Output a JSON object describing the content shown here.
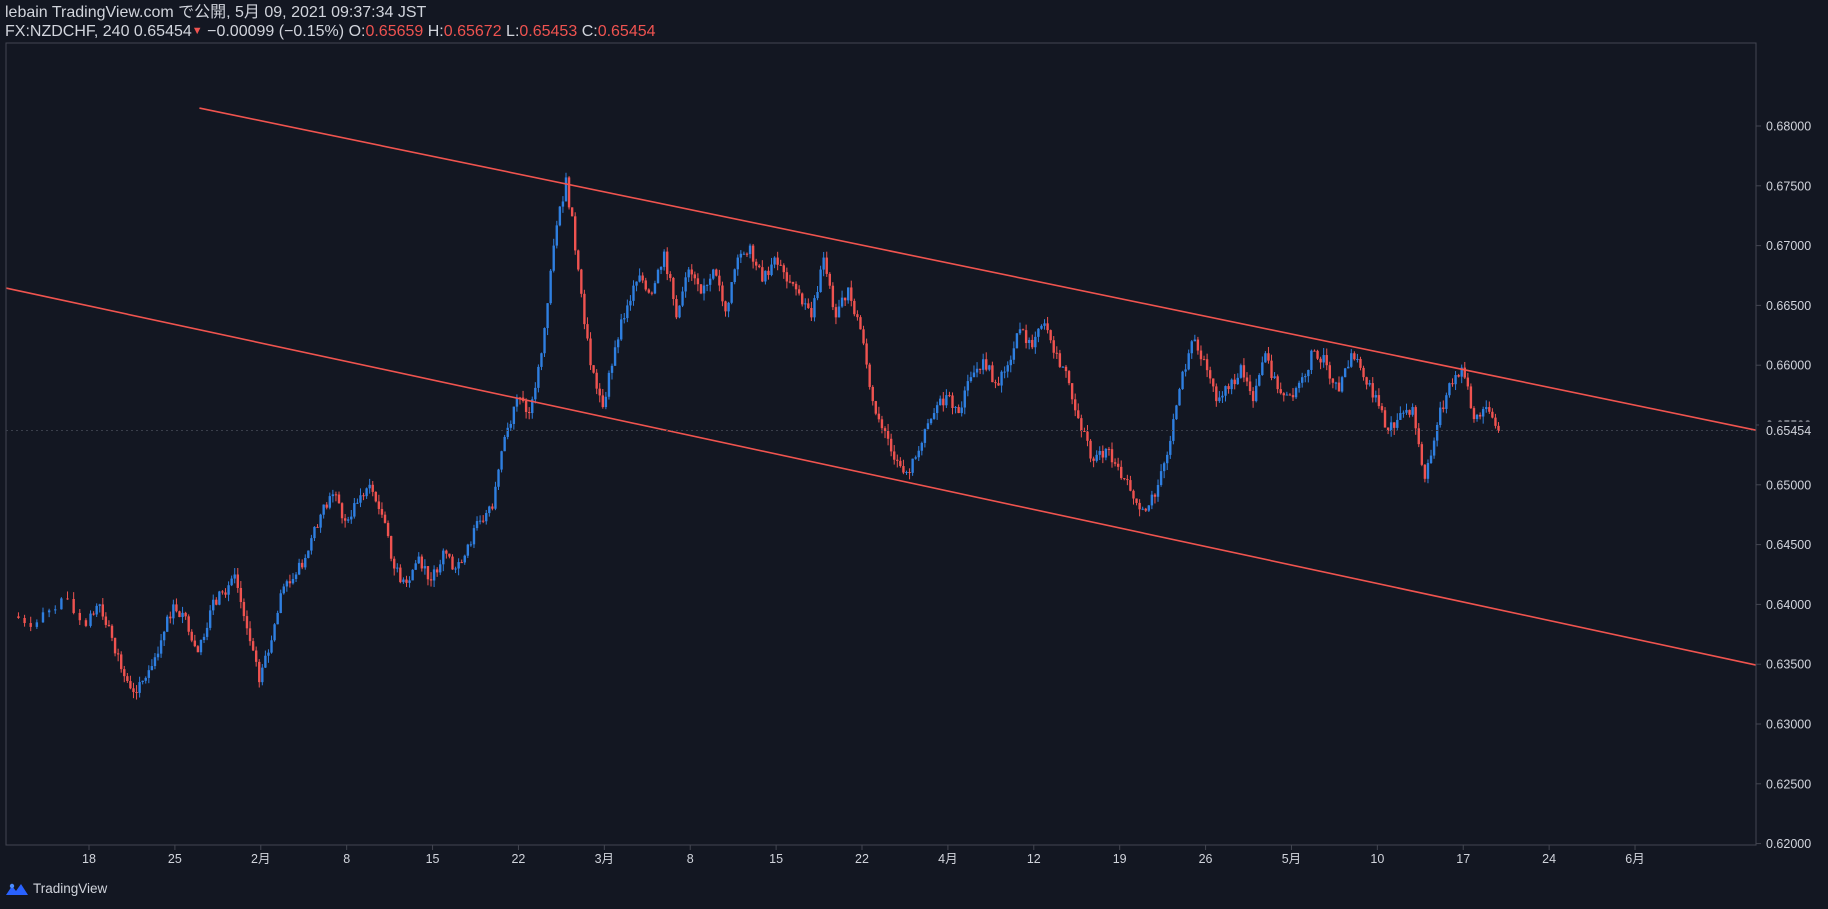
{
  "header": {
    "line1": "lebain TradingView.com で公開, 5月 09, 2021 09:37:34 JST",
    "symbol": "FX:NZDCHF, 240",
    "last": "0.65454",
    "change": "−0.00099 (−0.15%)",
    "o_label": "O:",
    "o_value": "0.65659",
    "h_label": "H:",
    "h_value": "0.65672",
    "l_label": "L:",
    "l_value": "0.65453",
    "c_label": "C:",
    "c_value": "0.65454"
  },
  "footer": {
    "brand": "TradingView",
    "logo_icon": "tradingview-logo-icon"
  },
  "colors": {
    "background": "#131722",
    "up": "#2f7fe0",
    "down": "#ef5350",
    "channel": "#f0544f",
    "axis": "#434651",
    "text": "#d1d4dc"
  },
  "chart_data": {
    "type": "candlestick",
    "symbol": "FX:NZDCHF",
    "interval": "240",
    "y_axis": {
      "side": "right",
      "range": [
        0.615,
        0.6825
      ],
      "ticks": [
        "0.68000",
        "0.67500",
        "0.67000",
        "0.66500",
        "0.66000",
        "0.65500",
        "0.65000",
        "0.64500",
        "0.64000",
        "0.63500",
        "0.63000",
        "0.62500",
        "0.62000"
      ],
      "current_price_label": "0.65454"
    },
    "x_axis": {
      "ticks": [
        "18",
        "25",
        "2月",
        "8",
        "15",
        "22",
        "3月",
        "8",
        "15",
        "22",
        "4月",
        "12",
        "19",
        "26",
        "5月",
        "10",
        "17",
        "24",
        "6月"
      ]
    },
    "price_path": [
      {
        "date": "2021-01-12",
        "close": 0.639
      },
      {
        "date": "2021-01-14",
        "close": 0.6385
      },
      {
        "date": "2021-01-16",
        "close": 0.6405
      },
      {
        "date": "2021-01-18",
        "close": 0.6382
      },
      {
        "date": "2021-01-19",
        "close": 0.64
      },
      {
        "date": "2021-01-20",
        "close": 0.6372
      },
      {
        "date": "2021-01-21",
        "close": 0.634
      },
      {
        "date": "2021-01-22",
        "close": 0.6326
      },
      {
        "date": "2021-01-23",
        "close": 0.6345
      },
      {
        "date": "2021-01-24",
        "close": 0.637
      },
      {
        "date": "2021-01-25",
        "close": 0.64
      },
      {
        "date": "2021-01-26",
        "close": 0.639
      },
      {
        "date": "2021-01-27",
        "close": 0.636
      },
      {
        "date": "2021-01-28",
        "close": 0.6395
      },
      {
        "date": "2021-01-29",
        "close": 0.641
      },
      {
        "date": "2021-01-30",
        "close": 0.6425
      },
      {
        "date": "2021-01-31",
        "close": 0.638
      },
      {
        "date": "2021-02-01",
        "close": 0.6335
      },
      {
        "date": "2021-02-02",
        "close": 0.637
      },
      {
        "date": "2021-02-03",
        "close": 0.6415
      },
      {
        "date": "2021-02-04",
        "close": 0.6425
      },
      {
        "date": "2021-02-05",
        "close": 0.6445
      },
      {
        "date": "2021-02-06",
        "close": 0.6475
      },
      {
        "date": "2021-02-07",
        "close": 0.6492
      },
      {
        "date": "2021-02-08",
        "close": 0.647
      },
      {
        "date": "2021-02-09",
        "close": 0.6485
      },
      {
        "date": "2021-02-10",
        "close": 0.65
      },
      {
        "date": "2021-02-11",
        "close": 0.6475
      },
      {
        "date": "2021-02-12",
        "close": 0.643
      },
      {
        "date": "2021-02-13",
        "close": 0.6418
      },
      {
        "date": "2021-02-14",
        "close": 0.644
      },
      {
        "date": "2021-02-15",
        "close": 0.642
      },
      {
        "date": "2021-02-16",
        "close": 0.6445
      },
      {
        "date": "2021-02-17",
        "close": 0.643
      },
      {
        "date": "2021-02-18",
        "close": 0.645
      },
      {
        "date": "2021-02-19",
        "close": 0.647
      },
      {
        "date": "2021-02-20",
        "close": 0.648
      },
      {
        "date": "2021-02-21",
        "close": 0.654
      },
      {
        "date": "2021-02-22",
        "close": 0.6573
      },
      {
        "date": "2021-02-23",
        "close": 0.656
      },
      {
        "date": "2021-02-24",
        "close": 0.661
      },
      {
        "date": "2021-02-25",
        "close": 0.67
      },
      {
        "date": "2021-02-26",
        "close": 0.6757
      },
      {
        "date": "2021-02-27",
        "close": 0.668
      },
      {
        "date": "2021-02-28",
        "close": 0.66
      },
      {
        "date": "2021-03-01",
        "close": 0.6565
      },
      {
        "date": "2021-03-02",
        "close": 0.6615
      },
      {
        "date": "2021-03-03",
        "close": 0.665
      },
      {
        "date": "2021-03-04",
        "close": 0.6675
      },
      {
        "date": "2021-03-05",
        "close": 0.666
      },
      {
        "date": "2021-03-06",
        "close": 0.6695
      },
      {
        "date": "2021-03-07",
        "close": 0.664
      },
      {
        "date": "2021-03-08",
        "close": 0.668
      },
      {
        "date": "2021-03-09",
        "close": 0.666
      },
      {
        "date": "2021-03-10",
        "close": 0.668
      },
      {
        "date": "2021-03-11",
        "close": 0.6645
      },
      {
        "date": "2021-03-12",
        "close": 0.669
      },
      {
        "date": "2021-03-13",
        "close": 0.67
      },
      {
        "date": "2021-03-14",
        "close": 0.667
      },
      {
        "date": "2021-03-15",
        "close": 0.669
      },
      {
        "date": "2021-03-16",
        "close": 0.667
      },
      {
        "date": "2021-03-17",
        "close": 0.666
      },
      {
        "date": "2021-03-18",
        "close": 0.664
      },
      {
        "date": "2021-03-19",
        "close": 0.669
      },
      {
        "date": "2021-03-20",
        "close": 0.664
      },
      {
        "date": "2021-03-21",
        "close": 0.6665
      },
      {
        "date": "2021-03-22",
        "close": 0.663
      },
      {
        "date": "2021-03-23",
        "close": 0.657
      },
      {
        "date": "2021-03-24",
        "close": 0.6545
      },
      {
        "date": "2021-03-25",
        "close": 0.652
      },
      {
        "date": "2021-03-26",
        "close": 0.651
      },
      {
        "date": "2021-03-27",
        "close": 0.6535
      },
      {
        "date": "2021-03-28",
        "close": 0.656
      },
      {
        "date": "2021-03-29",
        "close": 0.6575
      },
      {
        "date": "2021-03-30",
        "close": 0.656
      },
      {
        "date": "2021-03-31",
        "close": 0.659
      },
      {
        "date": "2021-04-01",
        "close": 0.6605
      },
      {
        "date": "2021-04-02",
        "close": 0.6585
      },
      {
        "date": "2021-04-03",
        "close": 0.66
      },
      {
        "date": "2021-04-04",
        "close": 0.663
      },
      {
        "date": "2021-04-05",
        "close": 0.6615
      },
      {
        "date": "2021-04-06",
        "close": 0.6635
      },
      {
        "date": "2021-04-07",
        "close": 0.661
      },
      {
        "date": "2021-04-08",
        "close": 0.6585
      },
      {
        "date": "2021-04-09",
        "close": 0.6545
      },
      {
        "date": "2021-04-10",
        "close": 0.652
      },
      {
        "date": "2021-04-11",
        "close": 0.653
      },
      {
        "date": "2021-04-12",
        "close": 0.6515
      },
      {
        "date": "2021-04-13",
        "close": 0.6495
      },
      {
        "date": "2021-04-14",
        "close": 0.648
      },
      {
        "date": "2021-04-15",
        "close": 0.649
      },
      {
        "date": "2021-04-16",
        "close": 0.6525
      },
      {
        "date": "2021-04-17",
        "close": 0.658
      },
      {
        "date": "2021-04-18",
        "close": 0.662
      },
      {
        "date": "2021-04-19",
        "close": 0.6605
      },
      {
        "date": "2021-04-20",
        "close": 0.657
      },
      {
        "date": "2021-04-21",
        "close": 0.658
      },
      {
        "date": "2021-04-22",
        "close": 0.66
      },
      {
        "date": "2021-04-23",
        "close": 0.657
      },
      {
        "date": "2021-04-24",
        "close": 0.661
      },
      {
        "date": "2021-04-25",
        "close": 0.658
      },
      {
        "date": "2021-04-26",
        "close": 0.6575
      },
      {
        "date": "2021-04-27",
        "close": 0.659
      },
      {
        "date": "2021-04-28",
        "close": 0.6612
      },
      {
        "date": "2021-04-29",
        "close": 0.66
      },
      {
        "date": "2021-04-30",
        "close": 0.6578
      },
      {
        "date": "2021-05-01",
        "close": 0.661
      },
      {
        "date": "2021-05-02",
        "close": 0.659
      },
      {
        "date": "2021-05-03",
        "close": 0.6575
      },
      {
        "date": "2021-05-04",
        "close": 0.6545
      },
      {
        "date": "2021-05-05",
        "close": 0.656
      },
      {
        "date": "2021-05-06",
        "close": 0.6565
      },
      {
        "date": "2021-05-07",
        "close": 0.6505
      },
      {
        "date": "2021-05-08",
        "close": 0.655
      },
      {
        "date": "2021-05-09",
        "close": 0.6585
      },
      {
        "date": "2021-05-10",
        "close": 0.6598
      },
      {
        "date": "2021-05-11",
        "close": 0.6555
      },
      {
        "date": "2021-05-12",
        "close": 0.6565
      },
      {
        "date": "2021-05-13",
        "close": 0.6545
      }
    ],
    "channel_lines": [
      {
        "role": "upper",
        "from": {
          "date": "2021-01-27",
          "price": 0.6815
        },
        "to": {
          "date": "2021-05-29",
          "price": 0.6556
        }
      },
      {
        "role": "lower",
        "from": {
          "date": "2021-01-11",
          "price": 0.6665
        },
        "to": {
          "date": "2021-05-29",
          "price": 0.636
        }
      }
    ],
    "grid": false
  }
}
